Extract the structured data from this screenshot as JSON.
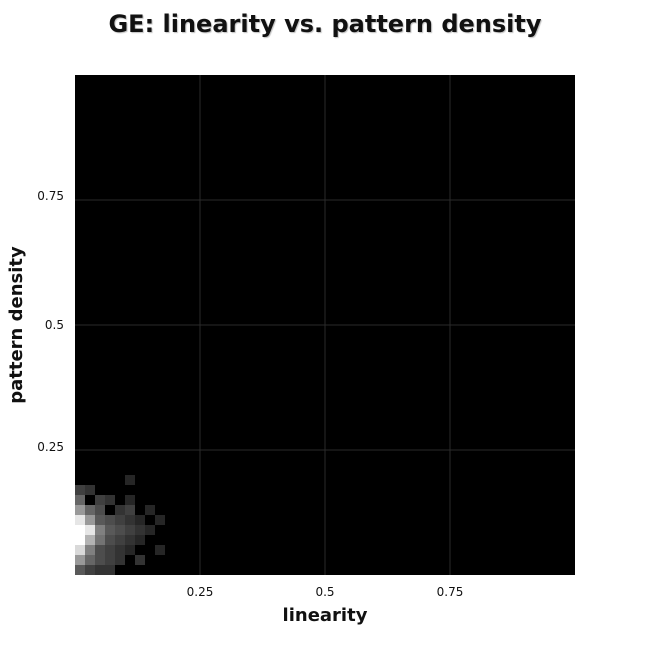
{
  "chart_data": {
    "type": "heatmap",
    "title": "GE: linearity vs. pattern density",
    "xlabel": "linearity",
    "ylabel": "pattern density",
    "xlim": [
      0,
      1
    ],
    "ylim": [
      0,
      1
    ],
    "x_ticks": [
      "0.25",
      "0.5",
      "0.75"
    ],
    "y_ticks": [
      "0.75",
      "0.5",
      "0.25"
    ],
    "grid": true,
    "colormap": "grayscale (black = 0, white = max)",
    "bin_size": 0.02,
    "cells": [
      {
        "x": 0.0,
        "y": 0.0,
        "v": 0.35
      },
      {
        "x": 0.02,
        "y": 0.0,
        "v": 0.25
      },
      {
        "x": 0.04,
        "y": 0.0,
        "v": 0.2
      },
      {
        "x": 0.06,
        "y": 0.0,
        "v": 0.2
      },
      {
        "x": 0.12,
        "y": 0.02,
        "v": 0.2
      },
      {
        "x": 0.0,
        "y": 0.02,
        "v": 0.6
      },
      {
        "x": 0.02,
        "y": 0.02,
        "v": 0.4
      },
      {
        "x": 0.04,
        "y": 0.02,
        "v": 0.3
      },
      {
        "x": 0.06,
        "y": 0.02,
        "v": 0.25
      },
      {
        "x": 0.08,
        "y": 0.02,
        "v": 0.2
      },
      {
        "x": 0.0,
        "y": 0.04,
        "v": 0.85
      },
      {
        "x": 0.02,
        "y": 0.04,
        "v": 0.5
      },
      {
        "x": 0.04,
        "y": 0.04,
        "v": 0.3
      },
      {
        "x": 0.06,
        "y": 0.04,
        "v": 0.25
      },
      {
        "x": 0.08,
        "y": 0.04,
        "v": 0.2
      },
      {
        "x": 0.1,
        "y": 0.04,
        "v": 0.15
      },
      {
        "x": 0.16,
        "y": 0.04,
        "v": 0.15
      },
      {
        "x": 0.0,
        "y": 0.06,
        "v": 1.0
      },
      {
        "x": 0.02,
        "y": 0.06,
        "v": 0.7
      },
      {
        "x": 0.04,
        "y": 0.06,
        "v": 0.45
      },
      {
        "x": 0.06,
        "y": 0.06,
        "v": 0.3
      },
      {
        "x": 0.08,
        "y": 0.06,
        "v": 0.25
      },
      {
        "x": 0.1,
        "y": 0.06,
        "v": 0.2
      },
      {
        "x": 0.12,
        "y": 0.06,
        "v": 0.15
      },
      {
        "x": 0.0,
        "y": 0.08,
        "v": 1.0
      },
      {
        "x": 0.02,
        "y": 0.08,
        "v": 0.9
      },
      {
        "x": 0.04,
        "y": 0.08,
        "v": 0.5
      },
      {
        "x": 0.06,
        "y": 0.08,
        "v": 0.35
      },
      {
        "x": 0.08,
        "y": 0.08,
        "v": 0.3
      },
      {
        "x": 0.1,
        "y": 0.08,
        "v": 0.25
      },
      {
        "x": 0.12,
        "y": 0.08,
        "v": 0.2
      },
      {
        "x": 0.14,
        "y": 0.08,
        "v": 0.15
      },
      {
        "x": 0.0,
        "y": 0.1,
        "v": 0.9
      },
      {
        "x": 0.02,
        "y": 0.1,
        "v": 0.6
      },
      {
        "x": 0.04,
        "y": 0.1,
        "v": 0.35
      },
      {
        "x": 0.06,
        "y": 0.1,
        "v": 0.3
      },
      {
        "x": 0.08,
        "y": 0.1,
        "v": 0.25
      },
      {
        "x": 0.1,
        "y": 0.1,
        "v": 0.2
      },
      {
        "x": 0.12,
        "y": 0.1,
        "v": 0.15
      },
      {
        "x": 0.16,
        "y": 0.1,
        "v": 0.15
      },
      {
        "x": 0.0,
        "y": 0.12,
        "v": 0.6
      },
      {
        "x": 0.02,
        "y": 0.12,
        "v": 0.4
      },
      {
        "x": 0.04,
        "y": 0.12,
        "v": 0.3
      },
      {
        "x": 0.08,
        "y": 0.12,
        "v": 0.2
      },
      {
        "x": 0.1,
        "y": 0.12,
        "v": 0.25
      },
      {
        "x": 0.14,
        "y": 0.12,
        "v": 0.15
      },
      {
        "x": 0.0,
        "y": 0.14,
        "v": 0.4
      },
      {
        "x": 0.04,
        "y": 0.14,
        "v": 0.25
      },
      {
        "x": 0.06,
        "y": 0.14,
        "v": 0.2
      },
      {
        "x": 0.1,
        "y": 0.14,
        "v": 0.15
      },
      {
        "x": 0.0,
        "y": 0.16,
        "v": 0.25
      },
      {
        "x": 0.02,
        "y": 0.16,
        "v": 0.2
      },
      {
        "x": 0.1,
        "y": 0.18,
        "v": 0.15
      }
    ]
  }
}
